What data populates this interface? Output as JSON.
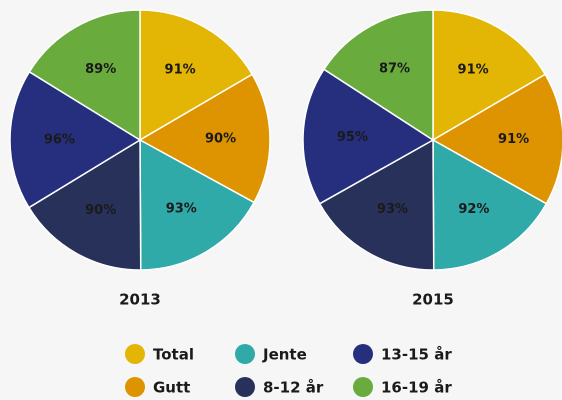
{
  "chart_data": [
    {
      "type": "pie",
      "title": "2013",
      "categories": [
        "Total",
        "Gutt",
        "Jente",
        "8-12 år",
        "13-15 år",
        "16-19 år"
      ],
      "values": [
        91,
        90,
        93,
        90,
        96,
        89
      ],
      "value_labels": [
        "91%",
        "90%",
        "93%",
        "90%",
        "96%",
        "89%"
      ],
      "colors": [
        "#e3b505",
        "#de9400",
        "#2faaa8",
        "#283159",
        "#262f7d",
        "#6aab3e"
      ],
      "legend": "bottom"
    },
    {
      "type": "pie",
      "title": "2015",
      "categories": [
        "Total",
        "Gutt",
        "Jente",
        "8-12 år",
        "13-15 år",
        "16-19 år"
      ],
      "values": [
        91,
        91,
        92,
        93,
        95,
        87
      ],
      "value_labels": [
        "91%",
        "91%",
        "92%",
        "93%",
        "95%",
        "87%"
      ],
      "colors": [
        "#e3b505",
        "#de9400",
        "#2faaa8",
        "#283159",
        "#262f7d",
        "#6aab3e"
      ]
    }
  ]
}
